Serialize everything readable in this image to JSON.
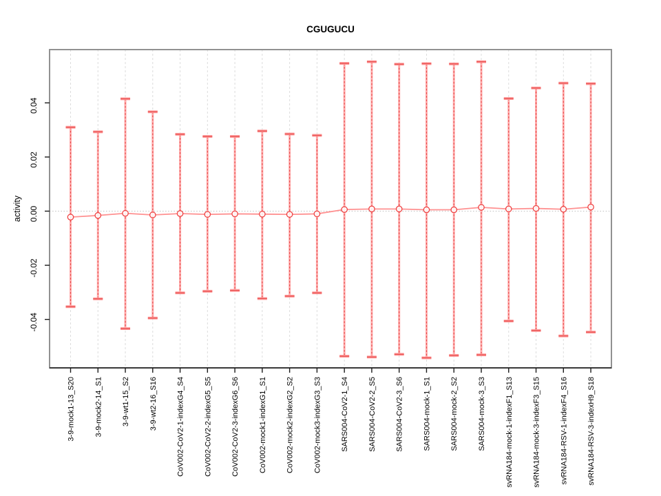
{
  "title": "CGUGUCU",
  "chart_data": {
    "type": "line",
    "title": "CGUGUCU",
    "xlabel": "",
    "ylabel": "activity",
    "ylim": [
      -0.058,
      0.06
    ],
    "yticks": [
      -0.04,
      -0.02,
      0.0,
      0.02,
      0.04
    ],
    "ytick_labels": [
      "-0.04",
      "-0.02",
      "0.00",
      "0.02",
      "0.04"
    ],
    "grid": "vertical dashed gridlines at each category; dotted horizontal line at y=0",
    "legend_position": "none",
    "marker": "open-circle",
    "error_bars": true,
    "categories": [
      "3-9-mock1-13_S20",
      "3-9-mock2-14_S1",
      "3-9-wt1-15_S2",
      "3-9-wt2-16_S16",
      "CoV002-CoV2-1-indexG4_S4",
      "CoV002-CoV2-2-indexG5_S5",
      "CoV002-CoV2-3-indexG6_S6",
      "CoV002-mock1-indexG1_S1",
      "CoV002-mock2-indexG2_S2",
      "CoV002-mock3-indexG3_S3",
      "SARS004-CoV2-1_S4",
      "SARS004-CoV2-2_S5",
      "SARS004-CoV2-3_S6",
      "SARS004-mock-1_S1",
      "SARS004-mock-2_S2",
      "SARS004-mock-3_S3",
      "svRNA184-mock-1-indexF1_S13",
      "svRNA184-mock-3-indexF3_S15",
      "svRNA184-RSV-1-indexF4_S16",
      "svRNA184-RSV-3-indexH9_S18"
    ],
    "series": [
      {
        "name": "mean activity",
        "values": [
          -0.0022,
          -0.0016,
          -0.0008,
          -0.0014,
          -0.0009,
          -0.0012,
          -0.001,
          -0.0011,
          -0.0012,
          -0.001,
          0.0006,
          0.0008,
          0.0008,
          0.0005,
          0.0005,
          0.0014,
          0.0008,
          0.001,
          0.0007,
          0.0015
        ]
      },
      {
        "name": "ci upper",
        "values": [
          0.031,
          0.0293,
          0.0415,
          0.0367,
          0.0284,
          0.0276,
          0.0276,
          0.0296,
          0.0285,
          0.028,
          0.0546,
          0.0552,
          0.0543,
          0.0545,
          0.0544,
          0.0552,
          0.0416,
          0.0455,
          0.0473,
          0.0471
        ]
      },
      {
        "name": "ci lower",
        "values": [
          -0.0353,
          -0.0324,
          -0.0434,
          -0.0395,
          -0.0302,
          -0.0296,
          -0.0293,
          -0.0323,
          -0.0314,
          -0.0302,
          -0.0536,
          -0.0539,
          -0.0529,
          -0.0542,
          -0.0533,
          -0.0531,
          -0.0406,
          -0.0441,
          -0.0461,
          -0.0447
        ]
      }
    ],
    "colors": {
      "errorbar_light": "#ffadad",
      "errorbar_cap_light": "#ff9e9e",
      "errorbar_dash": "#e85050",
      "point_stroke": "#ef4444",
      "connect_line": "#ff9090",
      "gridline": "#dcdcdc",
      "zero_line": "#bdbdbd",
      "box_border": "#919191",
      "axis_line": "#1a1a1a",
      "text": "#000000"
    }
  }
}
